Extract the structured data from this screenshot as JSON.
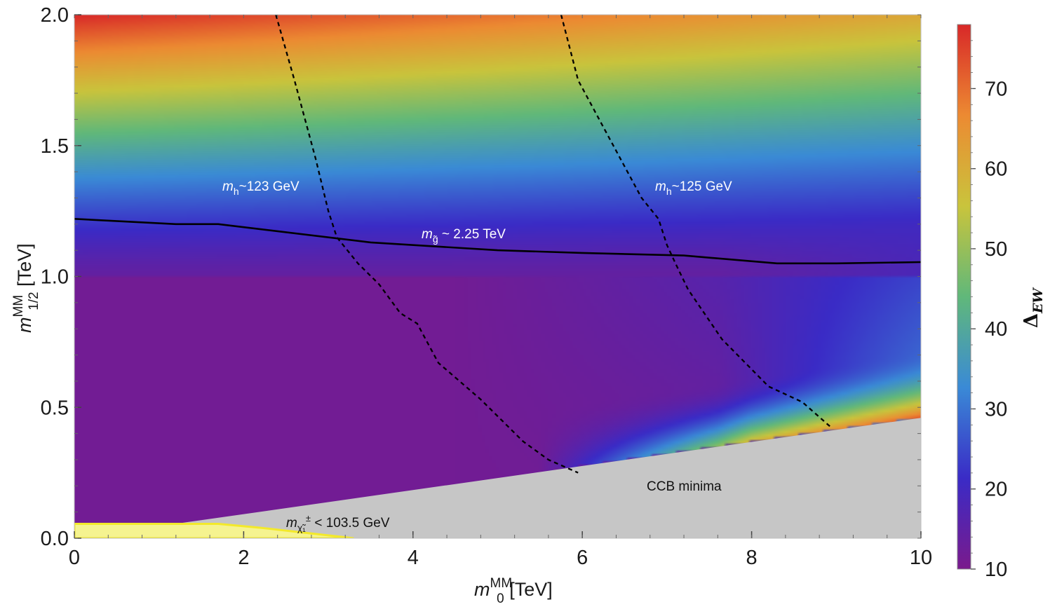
{
  "chart_data": {
    "type": "heatmap",
    "xlabel": {
      "main": "m",
      "sub": "0",
      "sup": "MM",
      "unit": " [TeV]"
    },
    "ylabel": {
      "main": "m",
      "sub": "1/2",
      "sup": "MM",
      "unit": " [TeV]"
    },
    "xlim": [
      0,
      10
    ],
    "ylim": [
      0,
      2
    ],
    "x_ticks": [
      "0",
      "2",
      "4",
      "6",
      "8",
      "10"
    ],
    "y_ticks": [
      "0.0",
      "0.5",
      "1.0",
      "1.5",
      "2.0"
    ],
    "colorbar": {
      "label": "Δ",
      "label_sub": "EW",
      "range": [
        10,
        78
      ],
      "ticks": [
        "10",
        "20",
        "30",
        "40",
        "50",
        "60",
        "70"
      ],
      "colors": [
        "#7a1a8c",
        "#3a2bc6",
        "#3a8ad6",
        "#60b87a",
        "#c9c43c",
        "#ec8a32",
        "#d82828"
      ]
    },
    "contours": [
      {
        "name": "mh~123 GeV",
        "label_main": "m",
        "label_sub": "h",
        "label_rest": "~123 GeV",
        "style": "dashed",
        "points": [
          [
            2.38,
            2.0
          ],
          [
            2.6,
            1.75
          ],
          [
            2.85,
            1.45
          ],
          [
            3.0,
            1.25
          ],
          [
            3.1,
            1.15
          ],
          [
            3.35,
            1.05
          ],
          [
            3.6,
            0.97
          ],
          [
            3.85,
            0.86
          ],
          [
            4.05,
            0.82
          ],
          [
            4.3,
            0.67
          ],
          [
            4.8,
            0.53
          ],
          [
            5.3,
            0.37
          ],
          [
            5.6,
            0.3
          ],
          [
            5.95,
            0.25
          ]
        ]
      },
      {
        "name": "mh~125 GeV",
        "label_main": "m",
        "label_sub": "h",
        "label_rest": "~125 GeV",
        "style": "dashed",
        "points": [
          [
            5.75,
            2.0
          ],
          [
            5.95,
            1.75
          ],
          [
            6.2,
            1.6
          ],
          [
            6.45,
            1.45
          ],
          [
            6.7,
            1.3
          ],
          [
            6.9,
            1.22
          ],
          [
            7.0,
            1.12
          ],
          [
            7.1,
            1.05
          ],
          [
            7.25,
            0.95
          ],
          [
            7.65,
            0.76
          ],
          [
            8.2,
            0.58
          ],
          [
            8.6,
            0.52
          ],
          [
            8.95,
            0.42
          ]
        ]
      },
      {
        "name": "m_gluino ~ 2.25 TeV",
        "label_main": "m",
        "label_sub": "g̃",
        "label_rest": " ~ 2.25 TeV",
        "style": "solid",
        "points": [
          [
            0,
            1.22
          ],
          [
            1.2,
            1.2
          ],
          [
            1.7,
            1.2
          ],
          [
            3.5,
            1.13
          ],
          [
            5.0,
            1.1
          ],
          [
            6.0,
            1.09
          ],
          [
            7.2,
            1.08
          ],
          [
            8.3,
            1.05
          ],
          [
            9.0,
            1.05
          ],
          [
            10,
            1.055
          ]
        ]
      }
    ],
    "excluded_regions": [
      {
        "name": "CCB minima",
        "label": "CCB minima",
        "color": "#c6c6c6",
        "polygon": [
          [
            0,
            0
          ],
          [
            10,
            0
          ],
          [
            10,
            0.46
          ],
          [
            0,
            0
          ]
        ]
      },
      {
        "name": "chargino limit",
        "label_main": "m",
        "label_sub": "χ̃₁",
        "label_sup": "±",
        "label_rest": " < 103.5 GeV",
        "color": "#f5f390",
        "edge_color": "#f3e92a",
        "polygon": [
          [
            0,
            0.055
          ],
          [
            1.7,
            0.055
          ],
          [
            2.2,
            0.04
          ],
          [
            3.3,
            0.0
          ],
          [
            0,
            0.0
          ]
        ]
      }
    ],
    "grid": false
  }
}
